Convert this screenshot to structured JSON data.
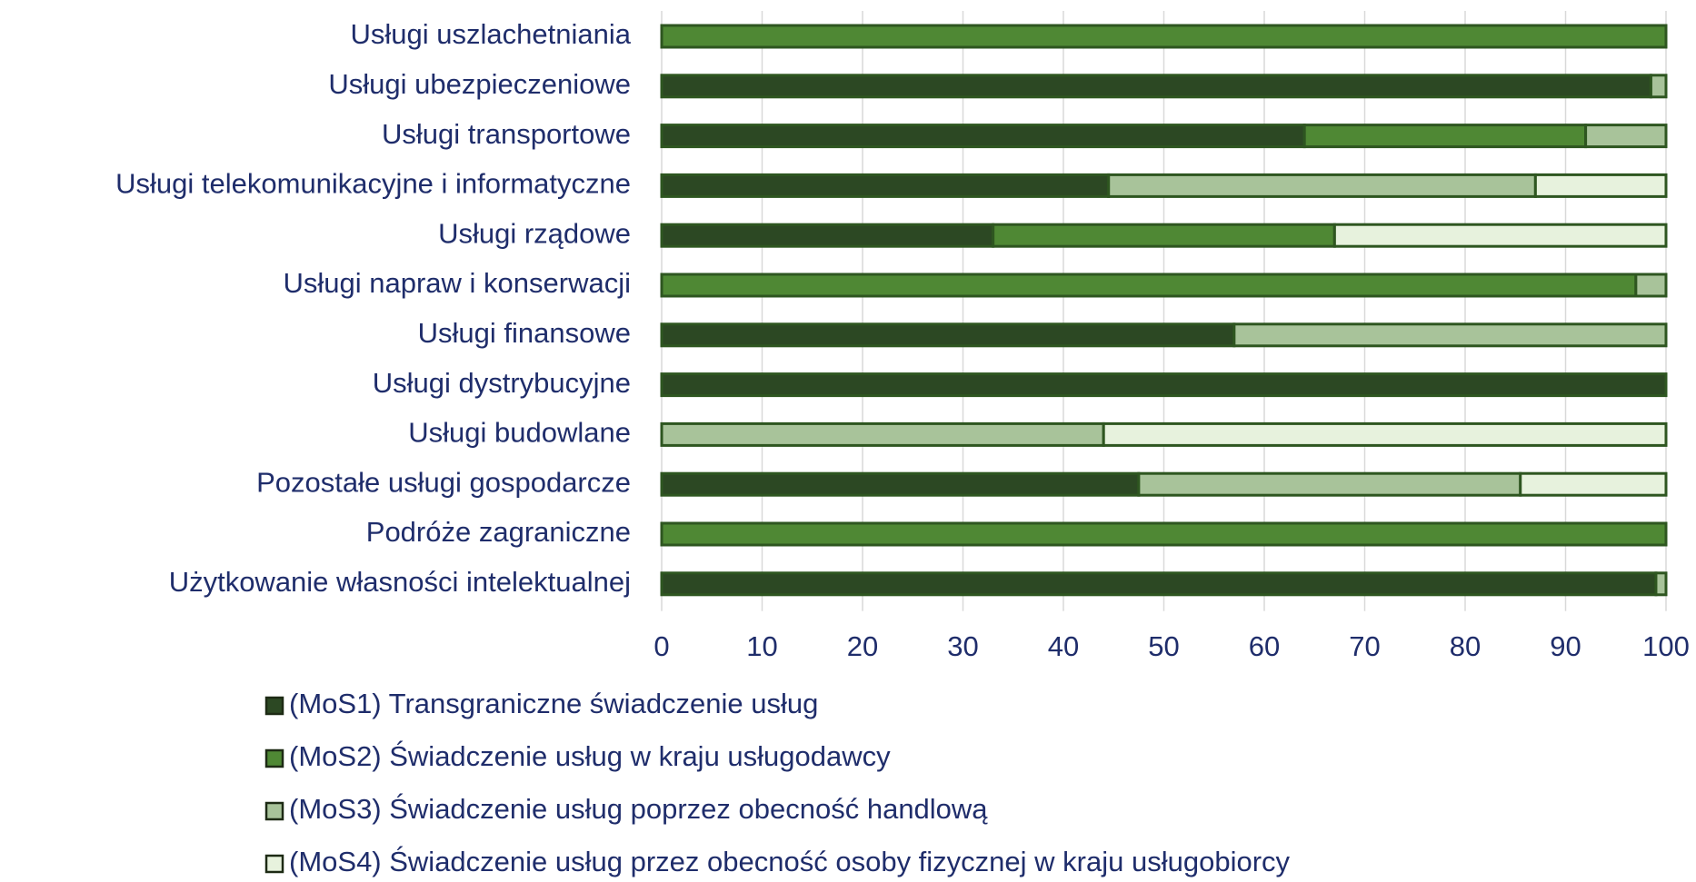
{
  "chart_data": {
    "type": "stacked_barh",
    "categories": [
      "Usługi uszlachetniania",
      "Usługi ubezpieczeniowe",
      "Usługi transportowe",
      "Usługi telekomunikacyjne i informatyczne",
      "Usługi rządowe",
      "Usługi napraw i konserwacji",
      "Usługi finansowe",
      "Usługi dystrybucyjne",
      "Usługi budowlane",
      "Pozostałe usługi gospodarcze",
      "Podróże zagraniczne",
      "Użytkowanie własności intelektualnej"
    ],
    "series": [
      {
        "name": "(MoS1) Transgraniczne świadczenie usług",
        "color": "#2c4823",
        "values": [
          0,
          98.5,
          64,
          44.5,
          33,
          0,
          57,
          100,
          0,
          47.5,
          0,
          99
        ]
      },
      {
        "name": "(MoS2) Świadczenie usług w kraju usługodawcy",
        "color": "#4f8834",
        "values": [
          100,
          0,
          28,
          0,
          34,
          97,
          0,
          0,
          0,
          0,
          100,
          0
        ]
      },
      {
        "name": "(MoS3) Świadczenie usług poprzez obecność handlową",
        "color": "#a8c39a",
        "values": [
          0,
          1.5,
          8,
          42.5,
          0,
          3,
          43,
          0,
          44,
          38,
          0,
          1
        ]
      },
      {
        "name": "(MoS4) Świadczenie usług przez obecność osoby fizycznej w kraju usługobiorcy",
        "color": "#e7f2dd",
        "values": [
          0,
          0,
          0,
          13,
          33,
          0,
          0,
          0,
          56,
          14.5,
          0,
          0
        ]
      }
    ],
    "xlim": [
      0,
      100
    ],
    "xticks": [
      0,
      10,
      20,
      30,
      40,
      50,
      60,
      70,
      80,
      90,
      100
    ],
    "grid": true
  }
}
